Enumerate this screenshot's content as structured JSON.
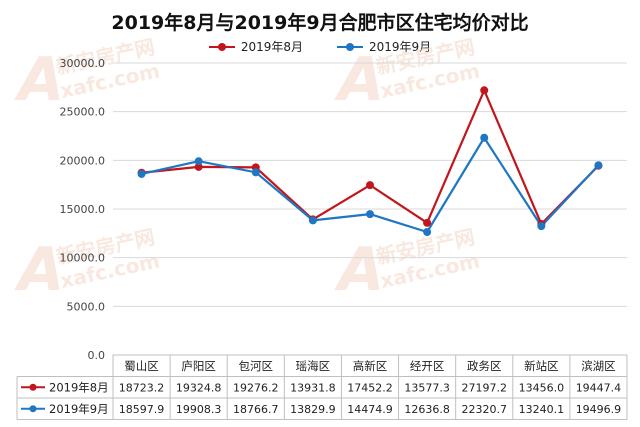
{
  "chart_data": {
    "type": "line",
    "title": "2019年8月与2019年9月合肥市区住宅均价对比",
    "categories": [
      "蜀山区",
      "庐阳区",
      "包河区",
      "瑶海区",
      "高新区",
      "经开区",
      "政务区",
      "新站区",
      "滨湖区"
    ],
    "series": [
      {
        "name": "2019年8月",
        "color": "#c0161c",
        "values": [
          18723.2,
          19324.8,
          19276.2,
          13931.8,
          17452.2,
          13577.3,
          27197.2,
          13456.0,
          19447.4
        ],
        "labels": [
          "18723.2",
          "19324.8",
          "19276.2",
          "13931.8",
          "17452.2",
          "13577.3",
          "27197.2",
          "13456.0",
          "19447.4"
        ]
      },
      {
        "name": "2019年9月",
        "color": "#1f77c4",
        "values": [
          18597.9,
          19908.3,
          18766.7,
          13829.9,
          14474.9,
          12636.8,
          22320.7,
          13240.1,
          19496.9
        ],
        "labels": [
          "18597.9",
          "19908.3",
          "18766.7",
          "13829.9",
          "14474.9",
          "12636.8",
          "22320.7",
          "13240.1",
          "19496.9"
        ]
      }
    ],
    "ylim": [
      0,
      30000
    ],
    "yticks": [
      "0.0",
      "5000.0",
      "10000.0",
      "15000.0",
      "20000.0",
      "25000.0",
      "30000.0"
    ],
    "ytick_values": [
      0,
      5000,
      10000,
      15000,
      20000,
      25000,
      30000
    ],
    "grid": true,
    "legend": "top",
    "data_table": true
  },
  "watermark": {
    "text": "新安房产网",
    "subtext": "xafc.com"
  }
}
